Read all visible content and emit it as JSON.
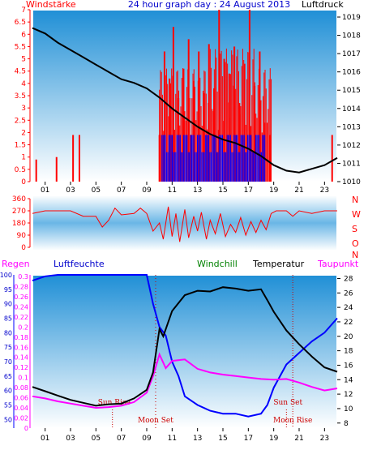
{
  "header": {
    "left_title": "Windstärke",
    "center_title": "24 hour graph day : 24 August 2013",
    "right_title": "Luftdruck"
  },
  "x_ticks": [
    "01",
    "03",
    "05",
    "07",
    "09",
    "11",
    "13",
    "15",
    "17",
    "19",
    "21",
    "23"
  ],
  "colors": {
    "wind_avg": "#0000ff",
    "wind_gust": "#ff0000",
    "pressure": "#000000",
    "direction": "#ff0000",
    "temperature": "#000000",
    "dewpoint": "#ff00ff",
    "humidity": "#0000ff",
    "rain": "#ff00ff",
    "windchill": "#008000",
    "frame": "#ffffff",
    "bg_top": "#1f8fd6",
    "bg_bottom": "#ffffff"
  },
  "chart_data": [
    {
      "type": "bar",
      "name": "wind",
      "yleft_ticks": [
        "0",
        "0.5",
        "1",
        "1.5",
        "2",
        "2.5",
        "3",
        "3.5",
        "4",
        "4.5",
        "5",
        "5.5",
        "6",
        "6.5",
        "7"
      ],
      "yright_ticks": [
        "1010",
        "1011",
        "1012",
        "1013",
        "1014",
        "1015",
        "1016",
        "1017",
        "1018",
        "1019"
      ],
      "ylim_left": [
        0,
        7
      ],
      "ylim_right": [
        1010,
        1019.4
      ],
      "xlim": [
        0,
        24
      ],
      "pressure_points": [
        [
          0,
          1018.4
        ],
        [
          1,
          1018.1
        ],
        [
          2,
          1017.6
        ],
        [
          3,
          1017.2
        ],
        [
          4,
          1016.8
        ],
        [
          5,
          1016.4
        ],
        [
          6,
          1016.0
        ],
        [
          7,
          1015.6
        ],
        [
          8,
          1015.4
        ],
        [
          9,
          1015.1
        ],
        [
          10,
          1014.6
        ],
        [
          11,
          1014.0
        ],
        [
          12,
          1013.5
        ],
        [
          13,
          1013.0
        ],
        [
          14,
          1012.6
        ],
        [
          15,
          1012.3
        ],
        [
          16,
          1012.1
        ],
        [
          17,
          1011.8
        ],
        [
          18,
          1011.4
        ],
        [
          19,
          1010.9
        ],
        [
          20,
          1010.6
        ],
        [
          21,
          1010.5
        ],
        [
          22,
          1010.7
        ],
        [
          23,
          1010.9
        ],
        [
          24,
          1011.3
        ]
      ],
      "gust_segments": [
        [
          0.3,
          0.9
        ],
        [
          1.9,
          1.0
        ],
        [
          3.2,
          1.9
        ],
        [
          3.7,
          1.9
        ],
        [
          10.0,
          1.9
        ],
        [
          10.4,
          5.3
        ],
        [
          10.8,
          4.2
        ],
        [
          11.1,
          6.3
        ],
        [
          11.5,
          3.4
        ],
        [
          11.9,
          4.6
        ],
        [
          12.3,
          5.8
        ],
        [
          12.7,
          4.1
        ],
        [
          13.1,
          5.3
        ],
        [
          13.5,
          3.6
        ],
        [
          13.9,
          5.6
        ],
        [
          14.3,
          3.8
        ],
        [
          14.7,
          7.0
        ],
        [
          15.1,
          5.0
        ],
        [
          15.5,
          4.4
        ],
        [
          15.9,
          5.5
        ],
        [
          16.3,
          3.2
        ],
        [
          16.7,
          4.8
        ],
        [
          17.1,
          7.0
        ],
        [
          17.5,
          3.9
        ],
        [
          17.9,
          5.3
        ],
        [
          18.3,
          2.4
        ],
        [
          18.7,
          1.9
        ],
        [
          23.6,
          1.9
        ]
      ],
      "avg_segments": [
        [
          10.2,
          1.9
        ],
        [
          10.7,
          1.9
        ],
        [
          11.3,
          1.9
        ],
        [
          11.8,
          1.6
        ],
        [
          12.4,
          1.9
        ],
        [
          13.0,
          1.9
        ],
        [
          13.6,
          1.9
        ],
        [
          14.2,
          1.9
        ],
        [
          14.8,
          1.9
        ],
        [
          15.3,
          1.9
        ],
        [
          15.9,
          1.6
        ],
        [
          16.5,
          1.9
        ],
        [
          17.1,
          1.9
        ],
        [
          17.6,
          1.9
        ],
        [
          18.2,
          1.0
        ]
      ]
    },
    {
      "type": "line",
      "name": "direction",
      "yleft_ticks": [
        "0",
        "90",
        "180",
        "270",
        "360"
      ],
      "yright_labels": [
        "N",
        "W",
        "S",
        "O",
        "N"
      ],
      "ylim": [
        0,
        360
      ],
      "xlim": [
        0,
        24
      ],
      "points": [
        [
          0,
          250
        ],
        [
          1,
          270
        ],
        [
          2,
          270
        ],
        [
          3,
          270
        ],
        [
          4,
          230
        ],
        [
          5,
          230
        ],
        [
          5.5,
          150
        ],
        [
          6,
          200
        ],
        [
          6.5,
          290
        ],
        [
          7,
          240
        ],
        [
          8,
          250
        ],
        [
          8.5,
          290
        ],
        [
          9,
          250
        ],
        [
          9.5,
          120
        ],
        [
          10,
          180
        ],
        [
          10.3,
          60
        ],
        [
          10.7,
          300
        ],
        [
          11,
          80
        ],
        [
          11.3,
          250
        ],
        [
          11.6,
          40
        ],
        [
          12,
          280
        ],
        [
          12.3,
          70
        ],
        [
          12.7,
          230
        ],
        [
          13,
          120
        ],
        [
          13.3,
          260
        ],
        [
          13.7,
          60
        ],
        [
          14,
          200
        ],
        [
          14.4,
          100
        ],
        [
          14.8,
          250
        ],
        [
          15.2,
          80
        ],
        [
          15.6,
          170
        ],
        [
          16,
          110
        ],
        [
          16.4,
          220
        ],
        [
          16.8,
          90
        ],
        [
          17.2,
          190
        ],
        [
          17.6,
          110
        ],
        [
          18,
          200
        ],
        [
          18.4,
          130
        ],
        [
          18.8,
          250
        ],
        [
          19.2,
          270
        ],
        [
          20,
          270
        ],
        [
          20.5,
          230
        ],
        [
          21,
          270
        ],
        [
          22,
          250
        ],
        [
          23,
          270
        ],
        [
          24,
          270
        ]
      ]
    },
    {
      "type": "line",
      "name": "climate",
      "labels": {
        "rain": "Regen",
        "humidity": "Luftfeuchte",
        "windchill": "Windchill",
        "temperature": "Temperatur",
        "dewpoint": "Taupunkt"
      },
      "rain_ticks": [
        "0",
        "0.02",
        "0.04",
        "0.06",
        "0.08",
        "0.1",
        "0.12",
        "0.14",
        "0.16",
        "0.18",
        "0.2",
        "0.22",
        "0.24",
        "0.26",
        "0.28",
        "0.3"
      ],
      "humidity_ticks": [
        "50",
        "55",
        "60",
        "65",
        "70",
        "75",
        "80",
        "85",
        "90",
        "95",
        "100"
      ],
      "temp_ticks": [
        "8",
        "10",
        "12",
        "14",
        "16",
        "18",
        "20",
        "22",
        "24",
        "26",
        "28"
      ],
      "humidity_lim": [
        47,
        100
      ],
      "temp_lim": [
        7.3,
        28.5
      ],
      "xlim": [
        0,
        24
      ],
      "events": [
        {
          "label": "Sun Rise",
          "x": 6.3
        },
        {
          "label": "Moon Set",
          "x": 9.7
        },
        {
          "label": "Sun Set",
          "x": 20.0
        },
        {
          "label": "Moon Rise",
          "x": 20.5
        }
      ],
      "temperature": [
        [
          0,
          13.0
        ],
        [
          1,
          12.4
        ],
        [
          2,
          11.8
        ],
        [
          3,
          11.2
        ],
        [
          4,
          10.8
        ],
        [
          5,
          10.4
        ],
        [
          6,
          10.6
        ],
        [
          7,
          10.7
        ],
        [
          8,
          11.4
        ],
        [
          9,
          12.6
        ],
        [
          9.5,
          15.0
        ],
        [
          10,
          21.0
        ],
        [
          10.3,
          20.0
        ],
        [
          11,
          23.5
        ],
        [
          12,
          25.7
        ],
        [
          13,
          26.3
        ],
        [
          14,
          26.2
        ],
        [
          15,
          26.8
        ],
        [
          16,
          26.6
        ],
        [
          17,
          26.3
        ],
        [
          18,
          26.5
        ],
        [
          18.5,
          25.0
        ],
        [
          19,
          23.4
        ],
        [
          20,
          20.8
        ],
        [
          21,
          18.9
        ],
        [
          22,
          17.2
        ],
        [
          23,
          15.7
        ],
        [
          24,
          15.1
        ]
      ],
      "dewpoint": [
        [
          0,
          11.7
        ],
        [
          1,
          11.4
        ],
        [
          2,
          11.0
        ],
        [
          3,
          10.7
        ],
        [
          4,
          10.4
        ],
        [
          5,
          10.1
        ],
        [
          6,
          10.2
        ],
        [
          7,
          10.4
        ],
        [
          8,
          10.9
        ],
        [
          9,
          12.2
        ],
        [
          9.5,
          14.5
        ],
        [
          10,
          17.5
        ],
        [
          10.5,
          15.6
        ],
        [
          11,
          16.6
        ],
        [
          12,
          16.8
        ],
        [
          13,
          15.5
        ],
        [
          14,
          15.0
        ],
        [
          15,
          14.7
        ],
        [
          16,
          14.5
        ],
        [
          17,
          14.3
        ],
        [
          18,
          14.1
        ],
        [
          19,
          14.0
        ],
        [
          20,
          14.1
        ],
        [
          21,
          13.6
        ],
        [
          22,
          13.0
        ],
        [
          23,
          12.5
        ],
        [
          24,
          12.8
        ]
      ],
      "humidity": [
        [
          0,
          98
        ],
        [
          1,
          99.5
        ],
        [
          2,
          100
        ],
        [
          3,
          100
        ],
        [
          4,
          100
        ],
        [
          5,
          100
        ],
        [
          6,
          100
        ],
        [
          7,
          100
        ],
        [
          8,
          100
        ],
        [
          9,
          100
        ],
        [
          9.5,
          90
        ],
        [
          10,
          82
        ],
        [
          10.5,
          79
        ],
        [
          11,
          70
        ],
        [
          11.5,
          65
        ],
        [
          12,
          58
        ],
        [
          13,
          55
        ],
        [
          14,
          53
        ],
        [
          15,
          52
        ],
        [
          16,
          52
        ],
        [
          17,
          51
        ],
        [
          18,
          52
        ],
        [
          18.5,
          55
        ],
        [
          19,
          61
        ],
        [
          20,
          69
        ],
        [
          21,
          73
        ],
        [
          22,
          77
        ],
        [
          23,
          80
        ],
        [
          24,
          85
        ]
      ]
    }
  ]
}
